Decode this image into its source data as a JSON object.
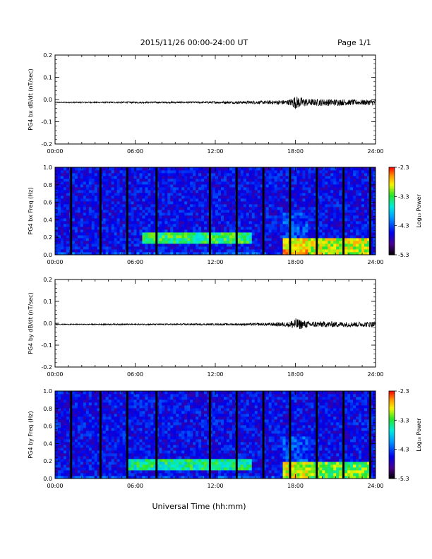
{
  "header": {
    "title": "2015/11/26  00:00-24:00 UT",
    "page": "Page 1/1"
  },
  "footer": {
    "xlabel": "Universal Time (hh:mm)"
  },
  "chart_data": [
    {
      "type": "line",
      "ylabel": "PG4 bx dB/dt (nT/sec)",
      "ylim": [
        -0.2,
        0.2
      ],
      "yticks": [
        "0.2",
        "0.1",
        "0.0",
        "-0.1",
        "-0.2"
      ],
      "xlim": [
        0,
        24
      ],
      "xticks": [
        "00:00",
        "06:00",
        "12:00",
        "18:00",
        "24:00"
      ],
      "series": [
        {
          "x": [
            0,
            2,
            4,
            6,
            8,
            10,
            12,
            14,
            16,
            17.5,
            18,
            18.5,
            19,
            20,
            21,
            22,
            23,
            24
          ],
          "amplitude": [
            0.002,
            0.003,
            0.003,
            0.004,
            0.004,
            0.004,
            0.005,
            0.006,
            0.008,
            0.012,
            0.03,
            0.022,
            0.015,
            0.016,
            0.015,
            0.013,
            0.012,
            0.014
          ],
          "baseline": -0.013
        }
      ],
      "color": "#000000"
    },
    {
      "type": "heatmap",
      "ylabel": "PG4 bx Freq (Hz)",
      "ylim": [
        0.0,
        1.0
      ],
      "yticks": [
        "1.0",
        "0.8",
        "0.6",
        "0.4",
        "0.2",
        "0.0"
      ],
      "xlim": [
        0,
        24
      ],
      "xticks": [
        "00:00",
        "06:00",
        "12:00",
        "18:00",
        "24:00"
      ],
      "colorbar": {
        "label": "Log₁₀ Power",
        "ticks": [
          "-2.3",
          "-3.3",
          "-4.3",
          "-5.3"
        ],
        "range": [
          -5.3,
          -2.3
        ]
      },
      "data_gaps_hours": [
        1.2,
        3.4,
        5.4,
        7.6,
        11.6,
        13.6,
        15.6,
        17.6,
        19.6,
        21.6,
        23.6
      ],
      "band_features": [
        {
          "t_start": 6.5,
          "t_end": 14.8,
          "f_start": 0.12,
          "f_end": 0.26,
          "level": -3.4
        },
        {
          "t_start": 17.0,
          "t_end": 23.5,
          "f_start": 0.0,
          "f_end": 0.2,
          "level": -3.0
        }
      ]
    },
    {
      "type": "line",
      "ylabel": "PG4 by dB/dt (nT/sec)",
      "ylim": [
        -0.2,
        0.2
      ],
      "yticks": [
        "0.2",
        "0.1",
        "0.0",
        "-0.1",
        "-0.2"
      ],
      "xlim": [
        0,
        24
      ],
      "xticks": [
        "00:00",
        "06:00",
        "12:00",
        "18:00",
        "24:00"
      ],
      "series": [
        {
          "x": [
            0,
            2,
            4,
            6,
            8,
            10,
            12,
            14,
            16,
            17.5,
            18,
            18.5,
            19,
            20,
            21,
            22,
            23,
            24
          ],
          "amplitude": [
            0.002,
            0.002,
            0.003,
            0.003,
            0.003,
            0.004,
            0.004,
            0.005,
            0.007,
            0.012,
            0.028,
            0.02,
            0.014,
            0.014,
            0.013,
            0.012,
            0.011,
            0.015
          ],
          "baseline": -0.005
        }
      ],
      "color": "#000000"
    },
    {
      "type": "heatmap",
      "ylabel": "PG4 by Freq (Hz)",
      "ylim": [
        0.0,
        1.0
      ],
      "yticks": [
        "1.0",
        "0.8",
        "0.6",
        "0.4",
        "0.2",
        "0.0"
      ],
      "xlim": [
        0,
        24
      ],
      "xticks": [
        "00:00",
        "06:00",
        "12:00",
        "18:00",
        "24:00"
      ],
      "colorbar": {
        "label": "Log₁₀ Power",
        "ticks": [
          "-2.3",
          "-3.3",
          "-4.3",
          "-5.3"
        ],
        "range": [
          -5.3,
          -2.3
        ]
      },
      "data_gaps_hours": [
        1.2,
        3.4,
        5.4,
        7.6,
        11.6,
        13.6,
        15.6,
        17.6,
        19.6,
        21.6,
        23.6
      ],
      "band_features": [
        {
          "t_start": 5.5,
          "t_end": 14.8,
          "f_start": 0.1,
          "f_end": 0.24,
          "level": -3.5
        },
        {
          "t_start": 17.0,
          "t_end": 23.5,
          "f_start": 0.0,
          "f_end": 0.18,
          "level": -3.2
        }
      ]
    }
  ]
}
